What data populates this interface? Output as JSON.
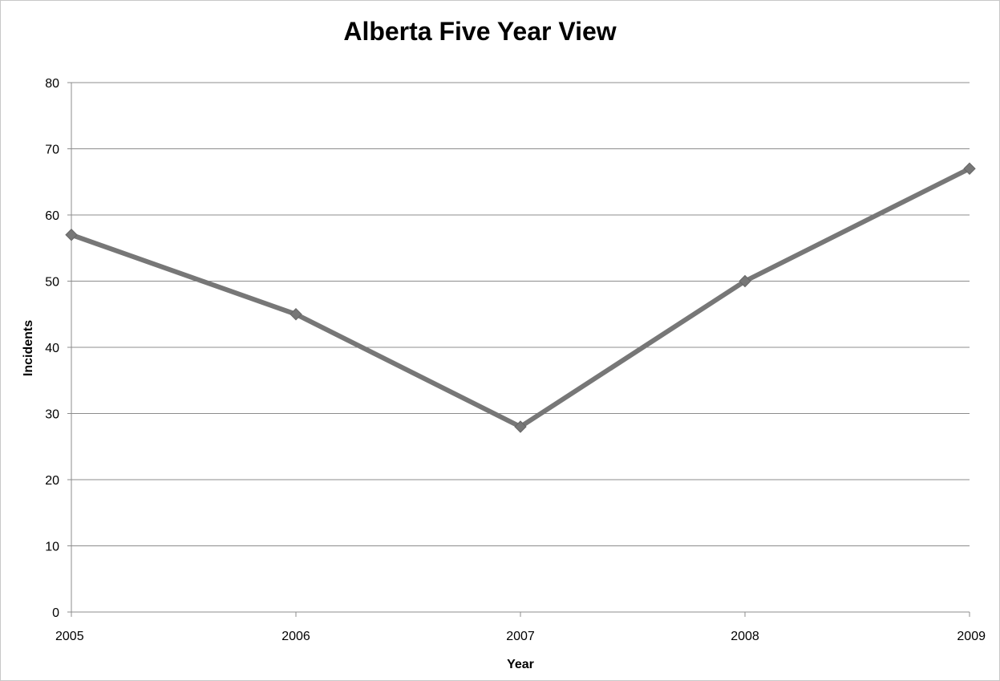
{
  "chart_data": {
    "type": "line",
    "title": "Alberta Five Year View",
    "xlabel": "Year",
    "ylabel": "Incidents",
    "categories": [
      "2005",
      "2006",
      "2007",
      "2008",
      "2009"
    ],
    "series": [
      {
        "values": [
          57,
          45,
          28,
          50,
          67
        ]
      }
    ],
    "ylim": [
      0,
      80
    ],
    "yticks": [
      0,
      10,
      20,
      30,
      40,
      50,
      60,
      70,
      80
    ],
    "grid": true,
    "legend": "none",
    "colors": {
      "line": "#777777",
      "marker": "#777777",
      "grid": "#8c8c8c",
      "axis": "#8c8c8c",
      "text": "#000000"
    },
    "marker": "diamond"
  }
}
